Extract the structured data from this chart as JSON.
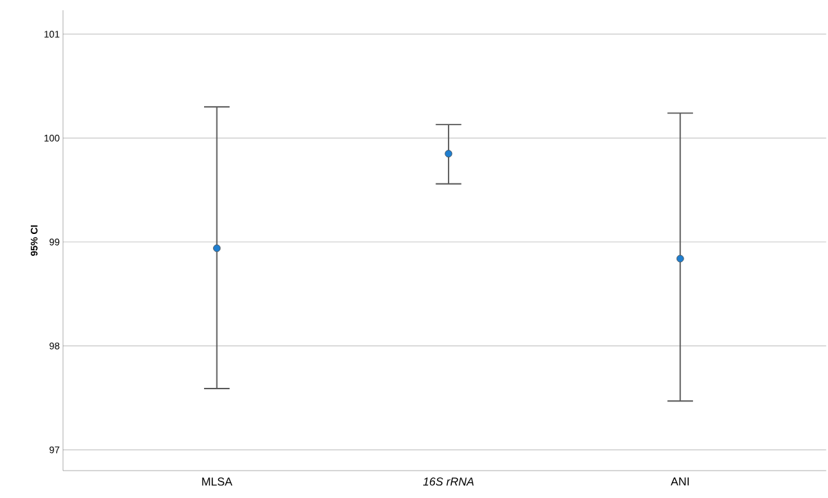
{
  "chart_data": {
    "type": "scatter",
    "ylabel": "95% CI",
    "categories": [
      "MLSA",
      "*16S rRNA*",
      "ANI"
    ],
    "values": [
      98.94,
      99.85,
      98.84
    ],
    "errors": [
      [
        97.59,
        100.3
      ],
      [
        99.56,
        100.13
      ],
      [
        97.47,
        100.24
      ]
    ],
    "color": "#1f7fd0",
    "marker": "circle",
    "ylim": [
      96.8,
      101.23
    ],
    "yticks": [
      97,
      98,
      99,
      100,
      101
    ],
    "grid": "y"
  }
}
